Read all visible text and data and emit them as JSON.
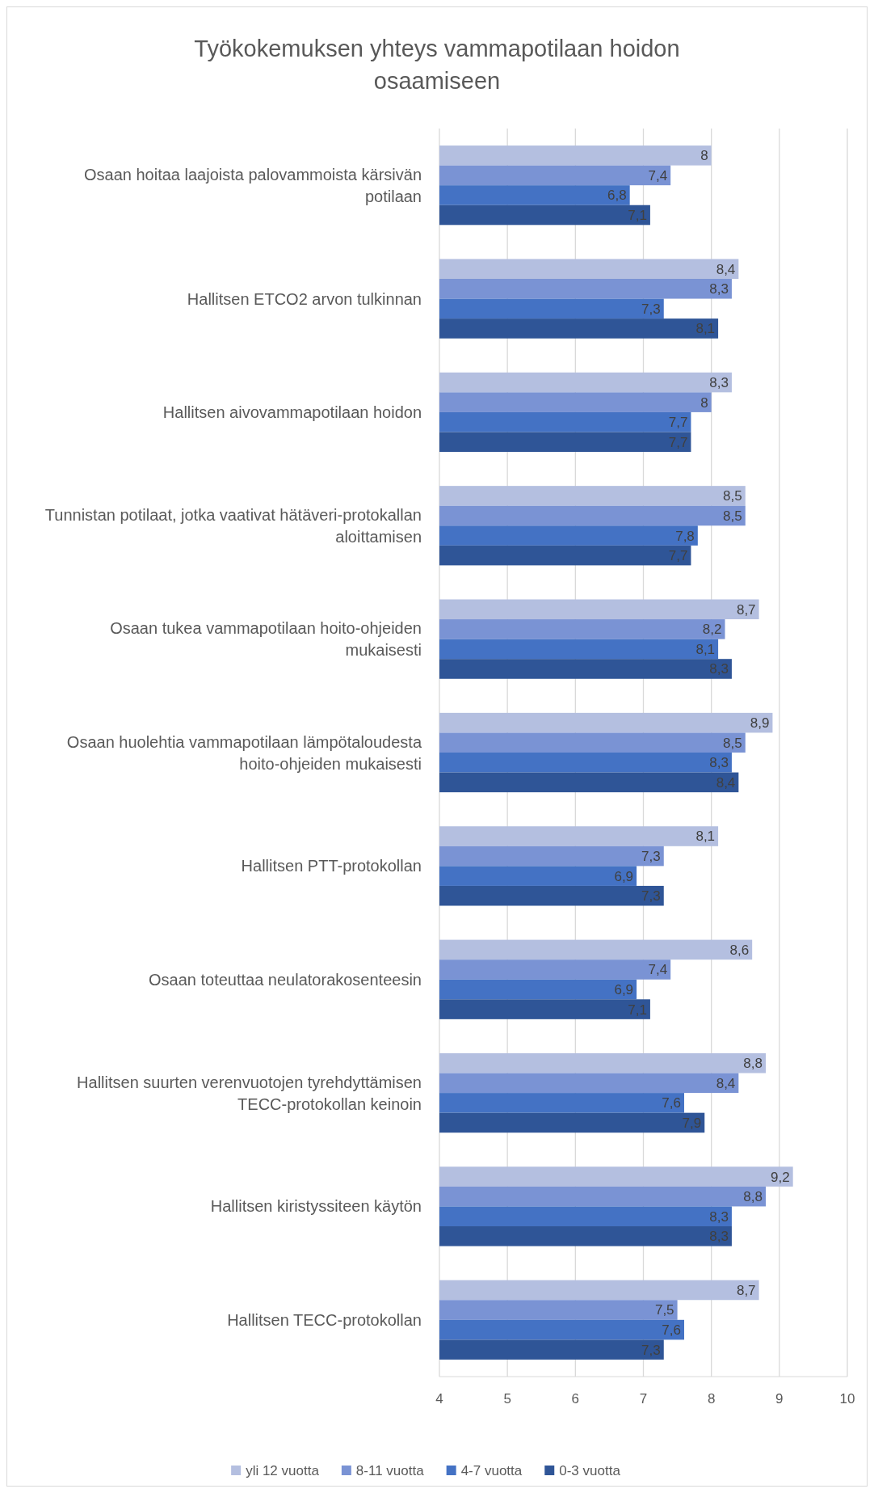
{
  "chart_data": {
    "type": "bar",
    "orientation": "horizontal",
    "title": "Työkokemuksen yhteys vammapotilaan hoidon osaamiseen",
    "categories": [
      "Osaan hoitaa laajoista palovammoista kärsivän potilaan",
      "Hallitsen ETCO2 arvon tulkinnan",
      "Hallitsen aivovammapotilaan hoidon",
      "Tunnistan potilaat, jotka vaativat hätäveri-protokallan aloittamisen",
      "Osaan tukea vammapotilaan hoito-ohjeiden mukaisesti",
      "Osaan huolehtia vammapotilaan lämpötaloudesta hoito-ohjeiden mukaisesti",
      "Hallitsen PTT-protokollan",
      "Osaan toteuttaa neulatorakosenteesin",
      "Hallitsen suurten verenvuotojen tyrehdyttämisen TECC-protokollan keinoin",
      "Hallitsen kiristyssiteen käytön",
      "Hallitsen TECC-protokollan"
    ],
    "series": [
      {
        "name": "yli 12 vuotta",
        "color": "#b4bfe0",
        "values": [
          8,
          8.4,
          8.3,
          8.5,
          8.7,
          8.9,
          8.1,
          8.6,
          8.8,
          9.2,
          8.7
        ],
        "value_labels": [
          "8",
          "8,4",
          "8,3",
          "8,5",
          "8,7",
          "8,9",
          "8,1",
          "8,6",
          "8,8",
          "9,2",
          "8,7"
        ]
      },
      {
        "name": "8-11 vuotta",
        "color": "#7a93d4",
        "values": [
          7.4,
          8.3,
          8,
          8.5,
          8.2,
          8.5,
          7.3,
          7.4,
          8.4,
          8.8,
          7.5
        ],
        "value_labels": [
          "7,4",
          "8,3",
          "8",
          "8,5",
          "8,2",
          "8,5",
          "7,3",
          "7,4",
          "8,4",
          "8,8",
          "7,5"
        ]
      },
      {
        "name": "4-7 vuotta",
        "color": "#4472c4",
        "values": [
          6.8,
          7.3,
          7.7,
          7.8,
          8.1,
          8.3,
          6.9,
          6.9,
          7.6,
          8.3,
          7.6
        ],
        "value_labels": [
          "6,8",
          "7,3",
          "7,7",
          "7,8",
          "8,1",
          "8,3",
          "6,9",
          "6,9",
          "7,6",
          "8,3",
          "7,6"
        ]
      },
      {
        "name": "0-3 vuotta",
        "color": "#2f5597",
        "values": [
          7.1,
          8.1,
          7.7,
          7.7,
          8.3,
          8.4,
          7.3,
          7.1,
          7.9,
          8.3,
          7.3
        ],
        "value_labels": [
          "7,1",
          "8,1",
          "7,7",
          "7,7",
          "8,3",
          "8,4",
          "7,3",
          "7,1",
          "7,9",
          "8,3",
          "7,3"
        ]
      }
    ],
    "xlim": [
      4,
      10
    ],
    "xticks": [
      4,
      5,
      6,
      7,
      8,
      9,
      10
    ],
    "grid": "x",
    "legend": "bottom"
  }
}
